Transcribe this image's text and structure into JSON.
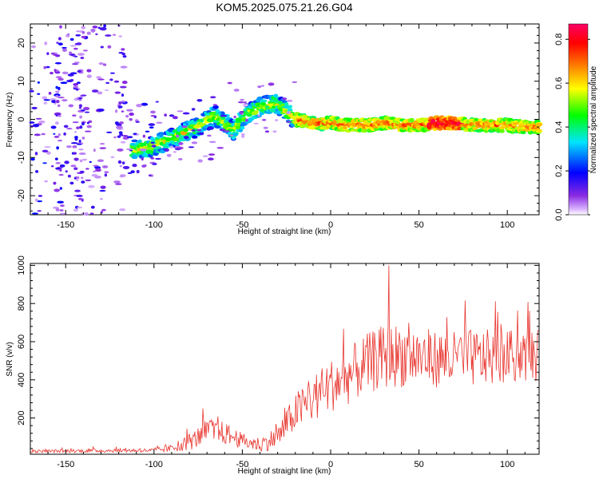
{
  "title": "KOM5.2025.075.21.26.G04",
  "colors": {
    "snr_line": "#e8362f",
    "frame": "#000000"
  },
  "chart_data": [
    {
      "type": "heatmap",
      "title": "KOM5.2025.075.21.26.G04",
      "xlabel": "Height of straight line (km)",
      "ylabel": "Frequency (Hz)",
      "xlim": [
        -170,
        118
      ],
      "ylim": [
        -25,
        25
      ],
      "x_ticks": [
        -150,
        -100,
        -50,
        0,
        50,
        100
      ],
      "y_ticks": [
        -20,
        -10,
        0,
        10,
        20
      ],
      "colorbar": {
        "label": "Normalized spectral amplitude",
        "range": [
          0,
          0.87
        ],
        "ticks": [
          0.0,
          0.2,
          0.4,
          0.6,
          0.8
        ],
        "colormap": "rainbow (violet -> blue -> cyan -> green -> yellow -> red -> magenta)"
      },
      "ridge": {
        "description": "dominant frequency ridge",
        "x": [
          -110,
          -100,
          -90,
          -80,
          -72,
          -65,
          -60,
          -55,
          -50,
          -45,
          -40,
          -35,
          -30,
          -25,
          -20,
          -10,
          0,
          10,
          20,
          30,
          40,
          50,
          60,
          70,
          80,
          90,
          100,
          110,
          118
        ],
        "y": [
          -8,
          -7,
          -5,
          -3,
          -1,
          1,
          -1,
          -3,
          0,
          2,
          3,
          4,
          4,
          2,
          0,
          -1,
          -1,
          -1.5,
          -1.5,
          -1,
          -1.5,
          -1.5,
          -1,
          -1,
          -1.5,
          -1.5,
          -1.5,
          -2,
          -2
        ]
      }
    },
    {
      "type": "line",
      "xlabel": "Height of straight line (km)",
      "ylabel": "SNR (v/v)",
      "xlim": [
        -170,
        118
      ],
      "ylim": [
        10,
        1010
      ],
      "x_ticks": [
        -150,
        -100,
        -50,
        0,
        50,
        100
      ],
      "y_ticks": [
        200,
        400,
        600,
        800,
        1000
      ],
      "envelope": {
        "description": "approximate mean SNR trend (noisy trace oscillates around it)",
        "x": [
          -170,
          -120,
          -100,
          -90,
          -80,
          -70,
          -60,
          -50,
          -40,
          -30,
          -20,
          -10,
          0,
          10,
          20,
          30,
          40,
          50,
          60,
          70,
          80,
          90,
          100,
          110,
          118
        ],
        "y": [
          25,
          30,
          30,
          40,
          70,
          130,
          120,
          80,
          60,
          100,
          230,
          300,
          370,
          420,
          480,
          520,
          530,
          520,
          510,
          505,
          510,
          515,
          520,
          525,
          530
        ],
        "amplitude": [
          8,
          10,
          10,
          20,
          40,
          70,
          60,
          40,
          40,
          60,
          100,
          130,
          140,
          150,
          160,
          170,
          170,
          160,
          150,
          150,
          150,
          150,
          140,
          140,
          140
        ]
      },
      "peak": {
        "x": 33,
        "y": 1000
      }
    }
  ]
}
